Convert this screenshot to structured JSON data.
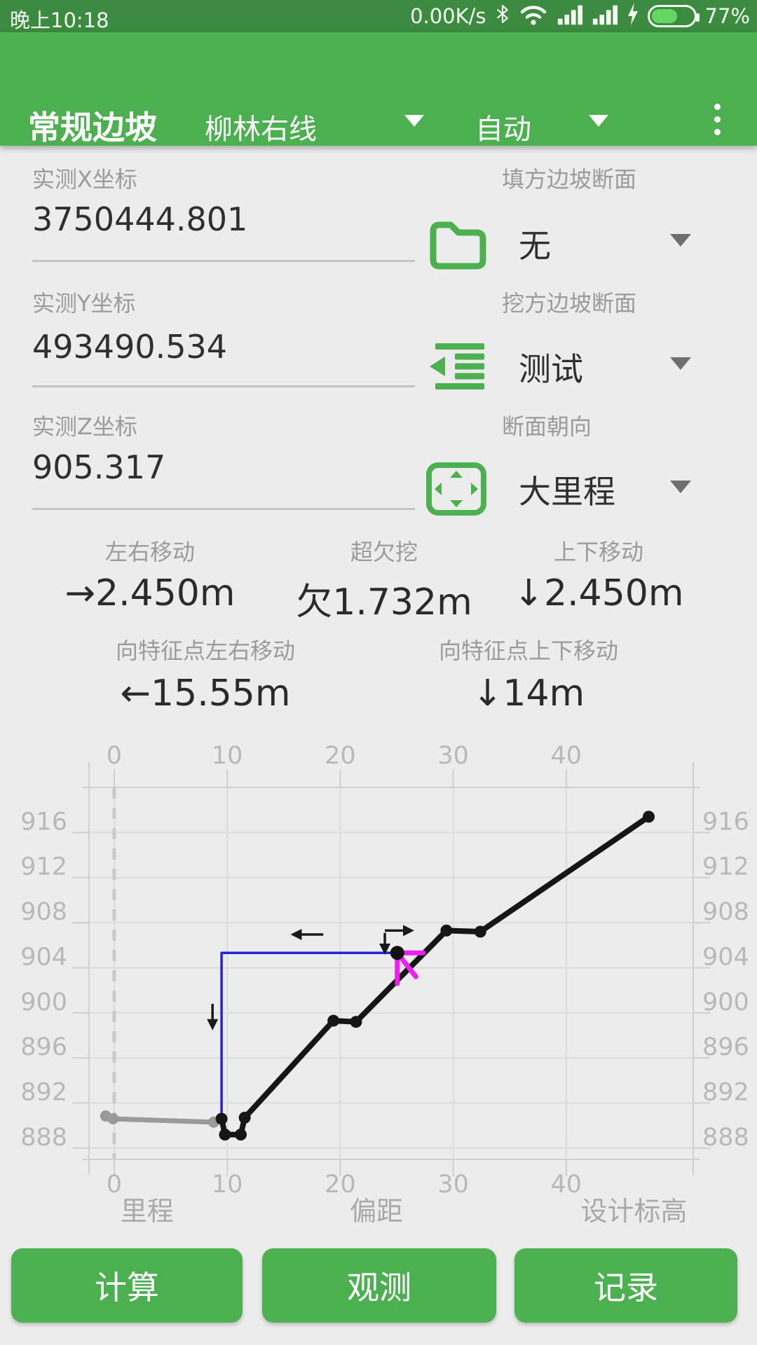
{
  "status_bar": {
    "time": "晚上10:18",
    "net_speed": "0.00K/s",
    "battery_percent": "77%"
  },
  "app_bar": {
    "title": "常规边坡",
    "line_selector": "柳林右线",
    "mode_selector": "自动"
  },
  "form": {
    "x_label": "实测X坐标",
    "x_value": "3750444.801",
    "y_label": "实测Y坐标",
    "y_value": "493490.534",
    "z_label": "实测Z坐标",
    "z_value": "905.317",
    "fill_label": "填方边坡断面",
    "fill_value": "无",
    "cut_label": "挖方边坡断面",
    "cut_value": "测试",
    "facing_label": "断面朝向",
    "facing_value": "大里程"
  },
  "measures": {
    "lr_label": "左右移动",
    "lr_value": "→2.450m",
    "overcut_label": "超欠挖",
    "overcut_value": "欠1.732m",
    "ud_label": "上下移动",
    "ud_value": "↓2.450m",
    "feat_lr_label": "向特征点左右移动",
    "feat_lr_value": "←15.55m",
    "feat_ud_label": "向特征点上下移动",
    "feat_ud_value": "↓14m"
  },
  "buttons": {
    "calculate": "计算",
    "observe": "观测",
    "record": "记录"
  },
  "colors": {
    "status_bar_green": "#3d8b40",
    "app_bar_green": "#4caf50",
    "icon_green": "#4caf50",
    "design_line_black": "#161616",
    "guide_blue": "#2222e0",
    "offset_magenta": "#ec1fec",
    "surface_gray": "#9a9a9a"
  },
  "chart_data": {
    "type": "line",
    "x_ticks": [
      0,
      10,
      20,
      30,
      40
    ],
    "y_ticks": [
      888,
      892,
      896,
      900,
      904,
      908,
      912,
      916
    ],
    "xlim": [
      -2.23,
      51.24
    ],
    "ylim": [
      887.0,
      920.0
    ],
    "grid": true,
    "equal_aspect": true,
    "legend": "none",
    "dashed_vline_x": 0,
    "bottom_captions": [
      {
        "text": "里程",
        "x": 2.9
      },
      {
        "text": "偏距",
        "x": 23.2
      },
      {
        "text": "设计标高",
        "x": 46.0
      }
    ],
    "series": [
      {
        "name": "measured-surface-line",
        "color": "#9a9a9a",
        "width": 7,
        "dot_radius": 8,
        "points": [
          [
            -0.75,
            890.85
          ],
          [
            -0.1,
            890.6
          ],
          [
            8.8,
            890.3
          ]
        ]
      },
      {
        "name": "design-profile-line",
        "color": "#161616",
        "width": 8,
        "dot_radius": 8.5,
        "points": [
          [
            9.5,
            890.6
          ],
          [
            9.8,
            889.2
          ],
          [
            11.2,
            889.2
          ],
          [
            11.55,
            890.7
          ],
          [
            19.4,
            899.3
          ],
          [
            21.4,
            899.2
          ],
          [
            29.4,
            907.3
          ],
          [
            32.4,
            907.2
          ],
          [
            47.3,
            917.4
          ]
        ]
      },
      {
        "name": "move-guide-line",
        "color": "#2222e0",
        "width": 3.5,
        "dot_radius": 0,
        "points": [
          [
            9.5,
            890.6
          ],
          [
            9.5,
            905.32
          ],
          [
            25.05,
            905.32
          ]
        ]
      }
    ],
    "measured_point": {
      "x": 25.05,
      "y": 905.32,
      "color": "#111111",
      "radius": 10
    },
    "offset_marker": {
      "color": "#ec1fec",
      "width": 7,
      "segments": [
        [
          [
            25.05,
            905.32
          ],
          [
            27.35,
            905.32
          ]
        ],
        [
          [
            25.05,
            905.32
          ],
          [
            25.05,
            902.6
          ]
        ],
        [
          [
            25.05,
            905.32
          ],
          [
            26.7,
            903.2
          ]
        ]
      ]
    },
    "arrows": [
      {
        "name": "move-left-arrow",
        "from": [
          18.5,
          906.95
        ],
        "to": [
          15.6,
          906.95
        ]
      },
      {
        "name": "move-right-arrow",
        "from": [
          23.95,
          907.3
        ],
        "to": [
          26.55,
          907.3
        ]
      },
      {
        "name": "move-down-arrow-at-point",
        "from": [
          23.95,
          907.1
        ],
        "to": [
          23.95,
          905.15
        ]
      },
      {
        "name": "move-down-arrow-at-guide",
        "from": [
          8.7,
          900.8
        ],
        "to": [
          8.7,
          898.45
        ]
      }
    ]
  }
}
